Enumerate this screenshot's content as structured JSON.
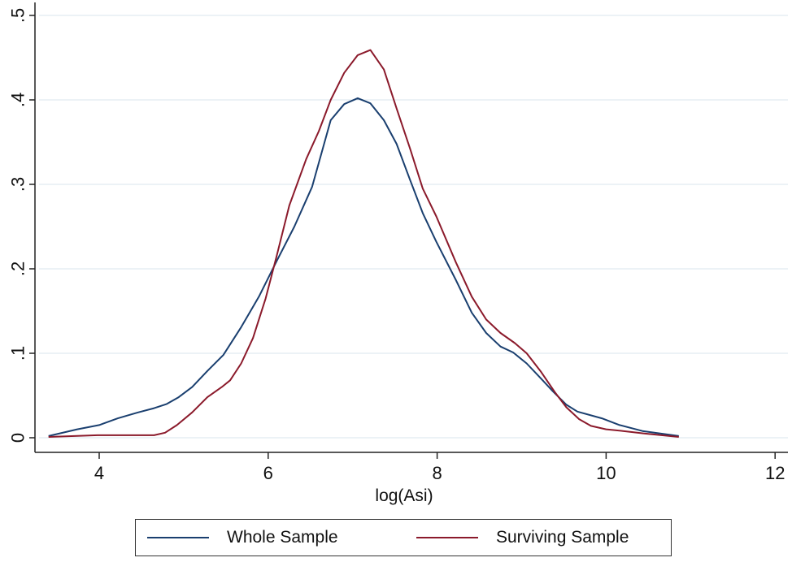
{
  "chart_data": {
    "type": "line",
    "title": "",
    "xlabel": "log(Asi)",
    "ylabel": "",
    "xlim": [
      3.25,
      12.05
    ],
    "ylim": [
      -0.018,
      0.52
    ],
    "x_ticks": [
      4,
      6,
      8,
      10,
      12
    ],
    "x_tick_labels": [
      "4",
      "6",
      "8",
      "10",
      "12"
    ],
    "y_ticks": [
      0,
      0.1,
      0.2,
      0.3,
      0.4,
      0.5
    ],
    "y_tick_labels": [
      "0",
      ".1",
      ".2",
      ".3",
      ".4",
      ".5"
    ],
    "grid": "horizontal",
    "legend_position": "bottom",
    "series": [
      {
        "name": "Whole Sample",
        "color": "#1a3f6f",
        "x": [
          3.4,
          3.74,
          4.0,
          4.22,
          4.46,
          4.65,
          4.8,
          4.94,
          5.1,
          5.28,
          5.47,
          5.68,
          5.89,
          6.1,
          6.31,
          6.52,
          6.74,
          6.9,
          7.06,
          7.21,
          7.37,
          7.52,
          7.68,
          7.83,
          7.99,
          8.22,
          8.41,
          8.58,
          8.75,
          8.9,
          9.06,
          9.23,
          9.37,
          9.53,
          9.66,
          9.95,
          10.16,
          10.43,
          10.86
        ],
        "y": [
          0.002,
          0.01,
          0.015,
          0.023,
          0.03,
          0.035,
          0.04,
          0.048,
          0.06,
          0.079,
          0.098,
          0.131,
          0.167,
          0.209,
          0.25,
          0.297,
          0.376,
          0.395,
          0.402,
          0.396,
          0.376,
          0.348,
          0.305,
          0.266,
          0.232,
          0.187,
          0.148,
          0.124,
          0.108,
          0.101,
          0.088,
          0.07,
          0.055,
          0.039,
          0.031,
          0.023,
          0.015,
          0.008,
          0.002
        ]
      },
      {
        "name": "Surviving Sample",
        "color": "#8b1a2b",
        "x": [
          3.4,
          3.98,
          4.32,
          4.65,
          4.78,
          4.92,
          5.1,
          5.28,
          5.45,
          5.55,
          5.68,
          5.82,
          5.97,
          6.1,
          6.25,
          6.45,
          6.6,
          6.74,
          6.9,
          7.06,
          7.21,
          7.37,
          7.52,
          7.68,
          7.83,
          7.99,
          8.22,
          8.41,
          8.58,
          8.75,
          8.92,
          9.06,
          9.23,
          9.4,
          9.53,
          9.68,
          9.82,
          10.0,
          10.2,
          10.45,
          10.86
        ],
        "y": [
          0.001,
          0.003,
          0.003,
          0.003,
          0.006,
          0.015,
          0.03,
          0.048,
          0.06,
          0.068,
          0.088,
          0.118,
          0.165,
          0.215,
          0.275,
          0.33,
          0.363,
          0.4,
          0.432,
          0.453,
          0.459,
          0.436,
          0.39,
          0.342,
          0.295,
          0.262,
          0.208,
          0.167,
          0.14,
          0.124,
          0.112,
          0.1,
          0.078,
          0.053,
          0.036,
          0.022,
          0.014,
          0.01,
          0.008,
          0.005,
          0.001
        ]
      }
    ]
  },
  "legend": {
    "items": [
      {
        "label": "Whole Sample",
        "color": "#1a3f6f"
      },
      {
        "label": "Surviving Sample",
        "color": "#8b1a2b"
      }
    ]
  }
}
